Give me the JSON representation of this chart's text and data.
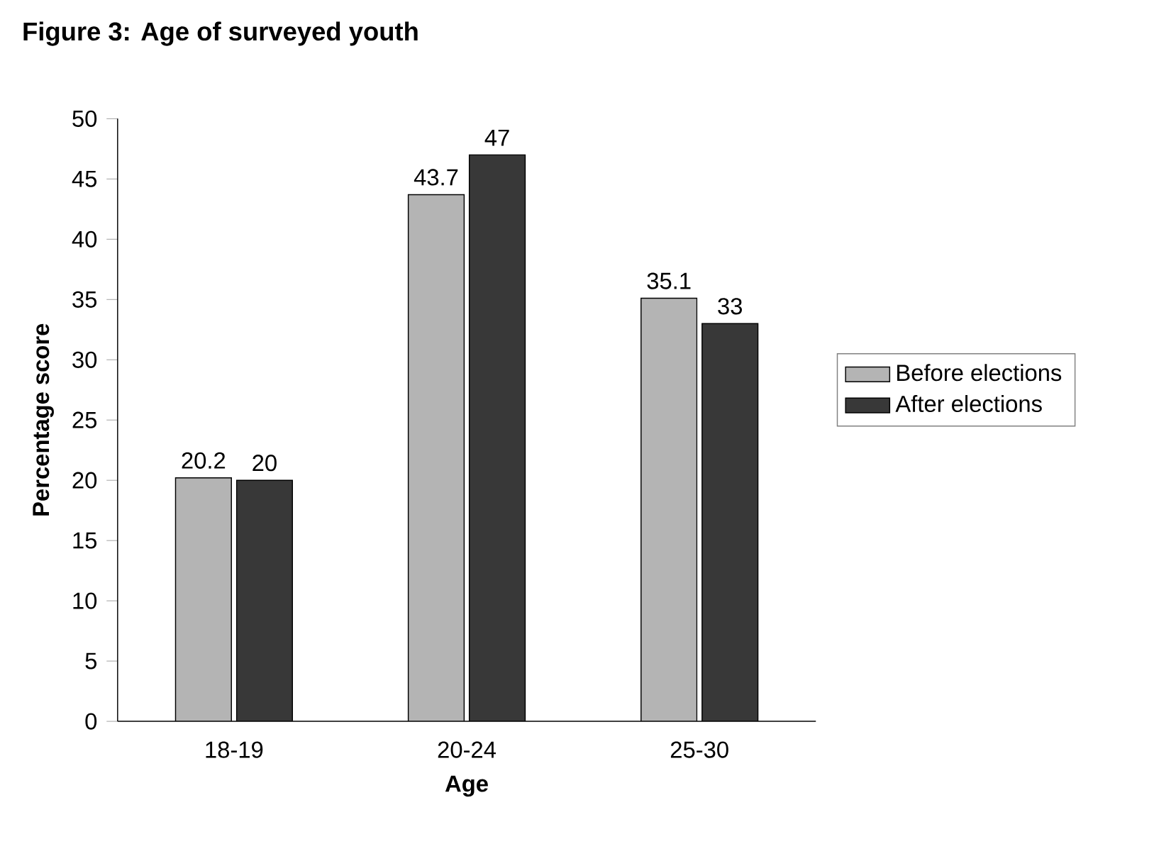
{
  "chart_data": {
    "type": "bar",
    "title": "Figure 3: Age of surveyed youth",
    "xlabel": "Age",
    "ylabel": "Percentage score",
    "categories": [
      "18-19",
      "20-24",
      "25-30"
    ],
    "series": [
      {
        "name": "Before elections",
        "color": "#b4b4b4",
        "values": [
          20.2,
          43.7,
          35.1
        ]
      },
      {
        "name": "After elections",
        "color": "#383838",
        "values": [
          20,
          47,
          33
        ]
      }
    ],
    "ylim": [
      0,
      50
    ],
    "yticks": [
      0,
      5,
      10,
      15,
      20,
      25,
      30,
      35,
      40,
      45,
      50
    ],
    "data_labels": true,
    "legend": "right",
    "grid": false
  }
}
